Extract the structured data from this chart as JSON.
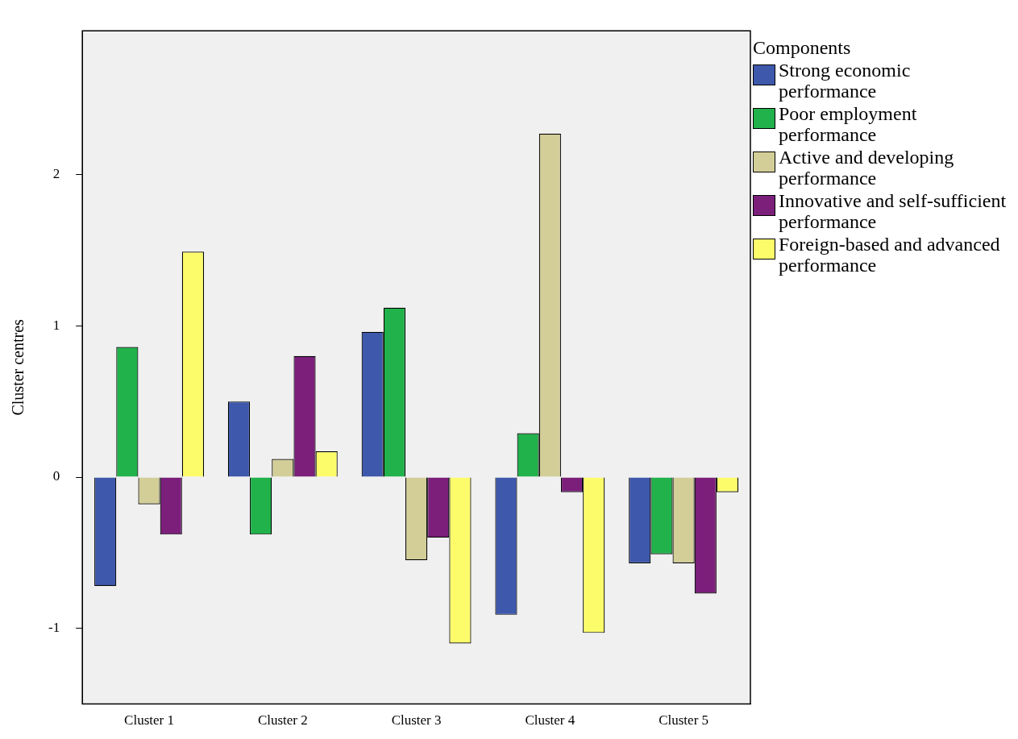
{
  "chart_data": {
    "type": "bar",
    "ylabel": "Cluster centres",
    "legend_title": "Components",
    "legend": "right",
    "grid": false,
    "categories": [
      "Cluster 1",
      "Cluster 2",
      "Cluster 3",
      "Cluster 4",
      "Cluster 5"
    ],
    "ylim": [
      -1.5,
      2.95
    ],
    "yticks": [
      -1,
      0,
      1,
      2
    ],
    "series": [
      {
        "name": "Strong economic performance",
        "color": "#3e58ac",
        "values": [
          -0.72,
          0.5,
          0.96,
          -0.91,
          -0.57
        ]
      },
      {
        "name": "Poor employment performance",
        "color": "#21b24b",
        "values": [
          0.86,
          -0.38,
          1.12,
          0.29,
          -0.51
        ]
      },
      {
        "name": "Active and developing performance",
        "color": "#d3ce98",
        "values": [
          -0.18,
          0.12,
          -0.55,
          2.27,
          -0.57
        ]
      },
      {
        "name": "Innovative and self-sufficient performance",
        "color": "#7b1f7b",
        "values": [
          -0.38,
          0.8,
          -0.4,
          -0.1,
          -0.77
        ]
      },
      {
        "name": "Foreign-based and advanced performance",
        "color": "#fcfc6b",
        "values": [
          1.49,
          0.17,
          -1.1,
          -1.03,
          -0.1
        ]
      }
    ]
  }
}
